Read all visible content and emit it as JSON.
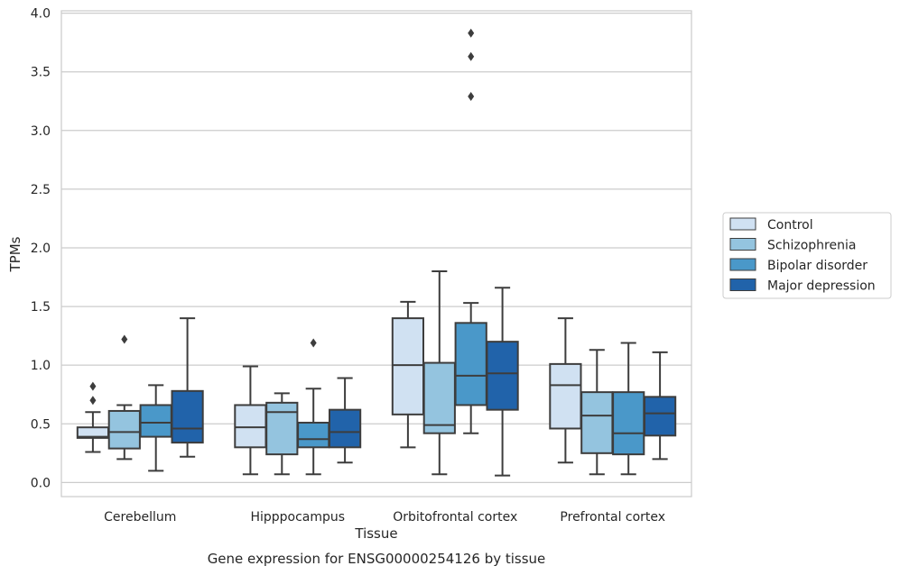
{
  "chart_data": {
    "type": "box",
    "xlabel": "Tissue",
    "ylabel": "TPMs",
    "caption": "Gene expression for ENSG00000254126 by tissue",
    "ylim": [
      -0.12,
      4.02
    ],
    "yticks": [
      0.0,
      0.5,
      1.0,
      1.5,
      2.0,
      2.5,
      3.0,
      3.5,
      4.0
    ],
    "ytick_labels": [
      "0.0",
      "0.5",
      "1.0",
      "1.5",
      "2.0",
      "2.5",
      "3.0",
      "3.5",
      "4.0"
    ],
    "grid": "horizontal",
    "legend_position": "right",
    "categories": [
      "Cerebellum",
      "Hipppocampus",
      "Orbitofrontal cortex",
      "Prefrontal cortex"
    ],
    "series": [
      {
        "name": "Control",
        "color": "#d0e1f2",
        "boxes": [
          {
            "whislo": 0.26,
            "q1": 0.38,
            "med": 0.39,
            "q3": 0.47,
            "whishi": 0.6,
            "fliers": [
              0.82,
              0.7
            ]
          },
          {
            "whislo": 0.07,
            "q1": 0.3,
            "med": 0.47,
            "q3": 0.66,
            "whishi": 0.99,
            "fliers": []
          },
          {
            "whislo": 0.3,
            "q1": 0.58,
            "med": 1.0,
            "q3": 1.4,
            "whishi": 1.54,
            "fliers": []
          },
          {
            "whislo": 0.17,
            "q1": 0.46,
            "med": 0.83,
            "q3": 1.01,
            "whishi": 1.4,
            "fliers": []
          }
        ]
      },
      {
        "name": "Schizophrenia",
        "color": "#94c4df",
        "boxes": [
          {
            "whislo": 0.2,
            "q1": 0.29,
            "med": 0.43,
            "q3": 0.61,
            "whishi": 0.66,
            "fliers": [
              1.22
            ]
          },
          {
            "whislo": 0.07,
            "q1": 0.24,
            "med": 0.6,
            "q3": 0.68,
            "whishi": 0.76,
            "fliers": []
          },
          {
            "whislo": 0.07,
            "q1": 0.42,
            "med": 0.49,
            "q3": 1.02,
            "whishi": 1.8,
            "fliers": []
          },
          {
            "whislo": 0.07,
            "q1": 0.25,
            "med": 0.57,
            "q3": 0.77,
            "whishi": 1.13,
            "fliers": []
          }
        ]
      },
      {
        "name": "Bipolar disorder",
        "color": "#4a98c9",
        "boxes": [
          {
            "whislo": 0.1,
            "q1": 0.39,
            "med": 0.51,
            "q3": 0.66,
            "whishi": 0.83,
            "fliers": []
          },
          {
            "whislo": 0.07,
            "q1": 0.3,
            "med": 0.37,
            "q3": 0.51,
            "whishi": 0.8,
            "fliers": [
              1.19
            ]
          },
          {
            "whislo": 0.42,
            "q1": 0.66,
            "med": 0.91,
            "q3": 1.36,
            "whishi": 1.53,
            "fliers": [
              3.29,
              3.63,
              3.83
            ]
          },
          {
            "whislo": 0.07,
            "q1": 0.24,
            "med": 0.42,
            "q3": 0.77,
            "whishi": 1.19,
            "fliers": []
          }
        ]
      },
      {
        "name": "Major depression",
        "color": "#2163aa",
        "boxes": [
          {
            "whislo": 0.22,
            "q1": 0.34,
            "med": 0.46,
            "q3": 0.78,
            "whishi": 1.4,
            "fliers": []
          },
          {
            "whislo": 0.17,
            "q1": 0.3,
            "med": 0.43,
            "q3": 0.62,
            "whishi": 0.89,
            "fliers": []
          },
          {
            "whislo": 0.06,
            "q1": 0.62,
            "med": 0.93,
            "q3": 1.2,
            "whishi": 1.66,
            "fliers": []
          },
          {
            "whislo": 0.2,
            "q1": 0.4,
            "med": 0.59,
            "q3": 0.73,
            "whishi": 1.11,
            "fliers": []
          }
        ]
      }
    ]
  }
}
